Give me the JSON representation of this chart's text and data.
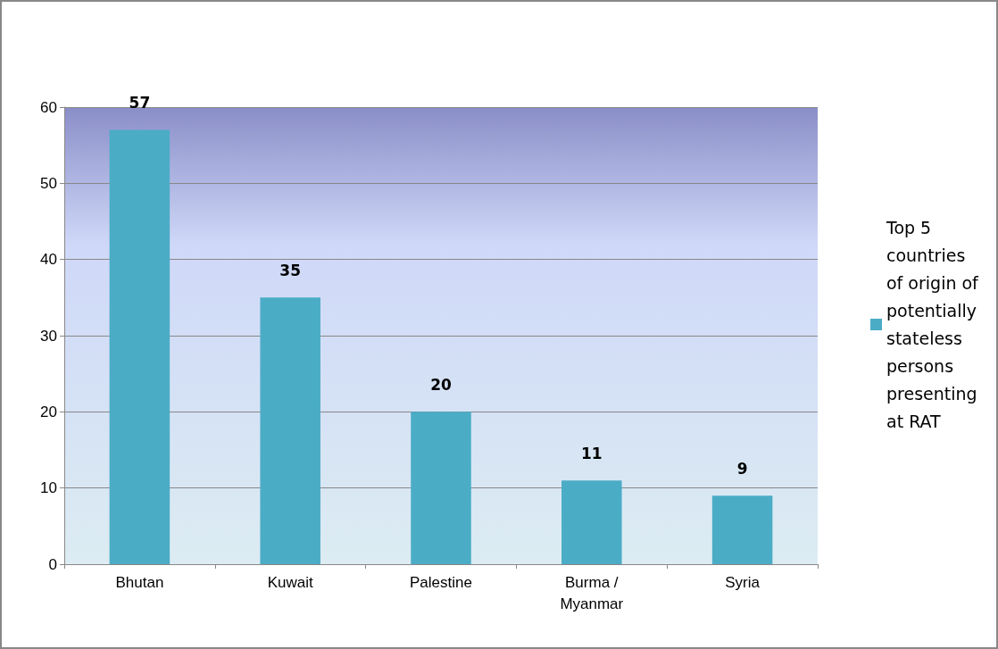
{
  "chart_data": {
    "type": "bar",
    "categories": [
      "Bhutan",
      "Kuwait",
      "Palestine",
      "Burma /\nMyanmar",
      "Syria"
    ],
    "series": [
      {
        "name": "Top 5 countries of origin of potentially stateless persons presenting at RAT",
        "color": "#4bacc6",
        "values": [
          57,
          35,
          20,
          11,
          9
        ]
      }
    ],
    "ylim": [
      0,
      60
    ],
    "yticks": [
      0,
      10,
      20,
      30,
      40,
      50,
      60
    ],
    "grid": "y",
    "legend": "right",
    "data_labels": true
  }
}
